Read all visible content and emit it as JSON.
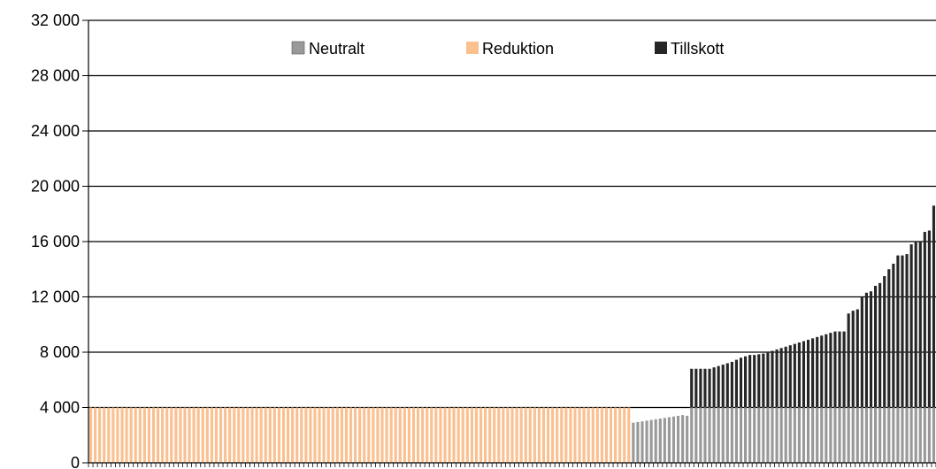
{
  "chart_data": {
    "type": "bar",
    "stacked": true,
    "title": "",
    "xlabel": "",
    "ylabel": "",
    "ylim": [
      0,
      32000
    ],
    "yticks": [
      0,
      4000,
      8000,
      12000,
      16000,
      20000,
      24000,
      28000,
      32000
    ],
    "ytick_labels": [
      "0",
      "4 000",
      "8 000",
      "12 000",
      "16 000",
      "20 000",
      "24 000",
      "28 000",
      "32 000"
    ],
    "grid": "horizontal",
    "legend_position": "top",
    "reduktion_count": 121,
    "series": [
      {
        "name": "Neutralt",
        "color": "#999999",
        "values": [
          2900,
          2950,
          3000,
          3050,
          3100,
          3150,
          3200,
          3250,
          3300,
          3350,
          3400,
          3450,
          3400,
          4000,
          4000,
          4000,
          4000,
          4000,
          4000,
          4000,
          4000,
          4000,
          4000,
          4000,
          4000,
          4000,
          4000,
          4000,
          4000,
          4000,
          4000,
          4000,
          4000,
          4000,
          4000,
          4000,
          4000,
          4000,
          4000,
          4000,
          4000,
          4000,
          4000,
          4000,
          4000,
          4000,
          4000,
          4000,
          4000,
          4000,
          4000,
          4000,
          4000,
          4000,
          4000,
          4000,
          4000,
          4000,
          4000,
          4000,
          4000,
          4000,
          4000,
          4000,
          4000,
          4000,
          4000,
          4000
        ]
      },
      {
        "name": "Reduktion",
        "color": "#FAC090",
        "value": 4000
      },
      {
        "name": "Tillskott",
        "color": "#262626",
        "values": [
          0,
          0,
          0,
          0,
          0,
          0,
          0,
          0,
          0,
          0,
          0,
          0,
          0,
          2800,
          2800,
          2800,
          2800,
          2800,
          2900,
          3000,
          3100,
          3200,
          3300,
          3450,
          3600,
          3700,
          3800,
          3800,
          3850,
          3900,
          4000,
          4100,
          4200,
          4300,
          4400,
          4500,
          4600,
          4700,
          4800,
          4900,
          5000,
          5100,
          5200,
          5300,
          5400,
          5500,
          5500,
          5500,
          6800,
          7000,
          7100,
          8000,
          8300,
          8400,
          8800,
          9000,
          9500,
          10000,
          10400,
          11000,
          11000,
          11100,
          11800,
          12000,
          12000,
          12700,
          12800,
          14600
        ]
      }
    ]
  }
}
